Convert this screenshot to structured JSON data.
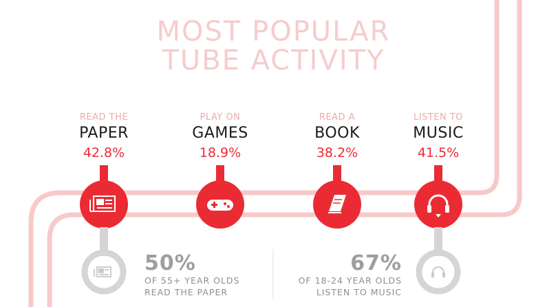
{
  "title": {
    "line1": "MOST POPULAR",
    "line2": "TUBE ACTIVITY"
  },
  "activities": [
    {
      "small": "READ THE",
      "big": "PAPER",
      "percent": "42.8%",
      "icon": "newspaper-icon"
    },
    {
      "small": "PLAY ON",
      "big": "GAMES",
      "percent": "18.9%",
      "icon": "gamepad-icon"
    },
    {
      "small": "READ A",
      "big": "BOOK",
      "percent": "38.2%",
      "icon": "book-icon"
    },
    {
      "small": "LISTEN TO",
      "big": "MUSIC",
      "percent": "41.5%",
      "icon": "headphones-icon"
    }
  ],
  "stats": [
    {
      "number": "50%",
      "line1": "OF 55+ YEAR OLDS",
      "line2": "READ THE PAPER",
      "icon": "newspaper-icon"
    },
    {
      "number": "67%",
      "line1": "OF 18-24 YEAR OLDS",
      "line2": "LISTEN TO MUSIC",
      "icon": "headphones-icon"
    }
  ],
  "colors": {
    "accent": "#ea2b33",
    "pink_track": "#f8c9c9",
    "grey": "#d5d5d5",
    "title": "#f6cccc"
  }
}
